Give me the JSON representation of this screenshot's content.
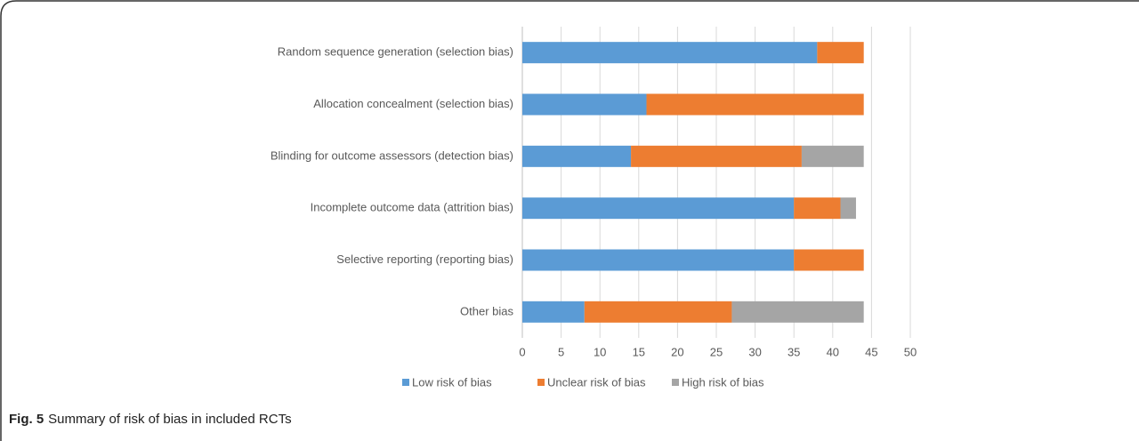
{
  "chart_data": {
    "type": "stacked-bar-horizontal",
    "categories": [
      "Random sequence generation (selection bias)",
      "Allocation concealment (selection bias)",
      "Blinding for outcome assessors (detection bias)",
      "Incomplete outcome data (attrition bias)",
      "Selective reporting (reporting bias)",
      "Other bias"
    ],
    "series": [
      {
        "name": "Low risk of bias",
        "color": "#5b9bd5",
        "values": [
          38,
          16,
          14,
          35,
          35,
          8
        ]
      },
      {
        "name": "Unclear risk of bias",
        "color": "#ed7d31",
        "values": [
          6,
          28,
          22,
          6,
          9,
          19
        ]
      },
      {
        "name": "High risk of bias",
        "color": "#a5a5a5",
        "values": [
          0,
          0,
          8,
          2,
          0,
          17
        ]
      }
    ],
    "xlim": [
      0,
      50
    ],
    "xticks": [
      0,
      5,
      10,
      15,
      20,
      25,
      30,
      35,
      40,
      45,
      50
    ],
    "grid": true,
    "legend": "bottom"
  },
  "caption": {
    "label": "Fig. 5",
    "text": "Summary of risk of bias in included RCTs"
  }
}
